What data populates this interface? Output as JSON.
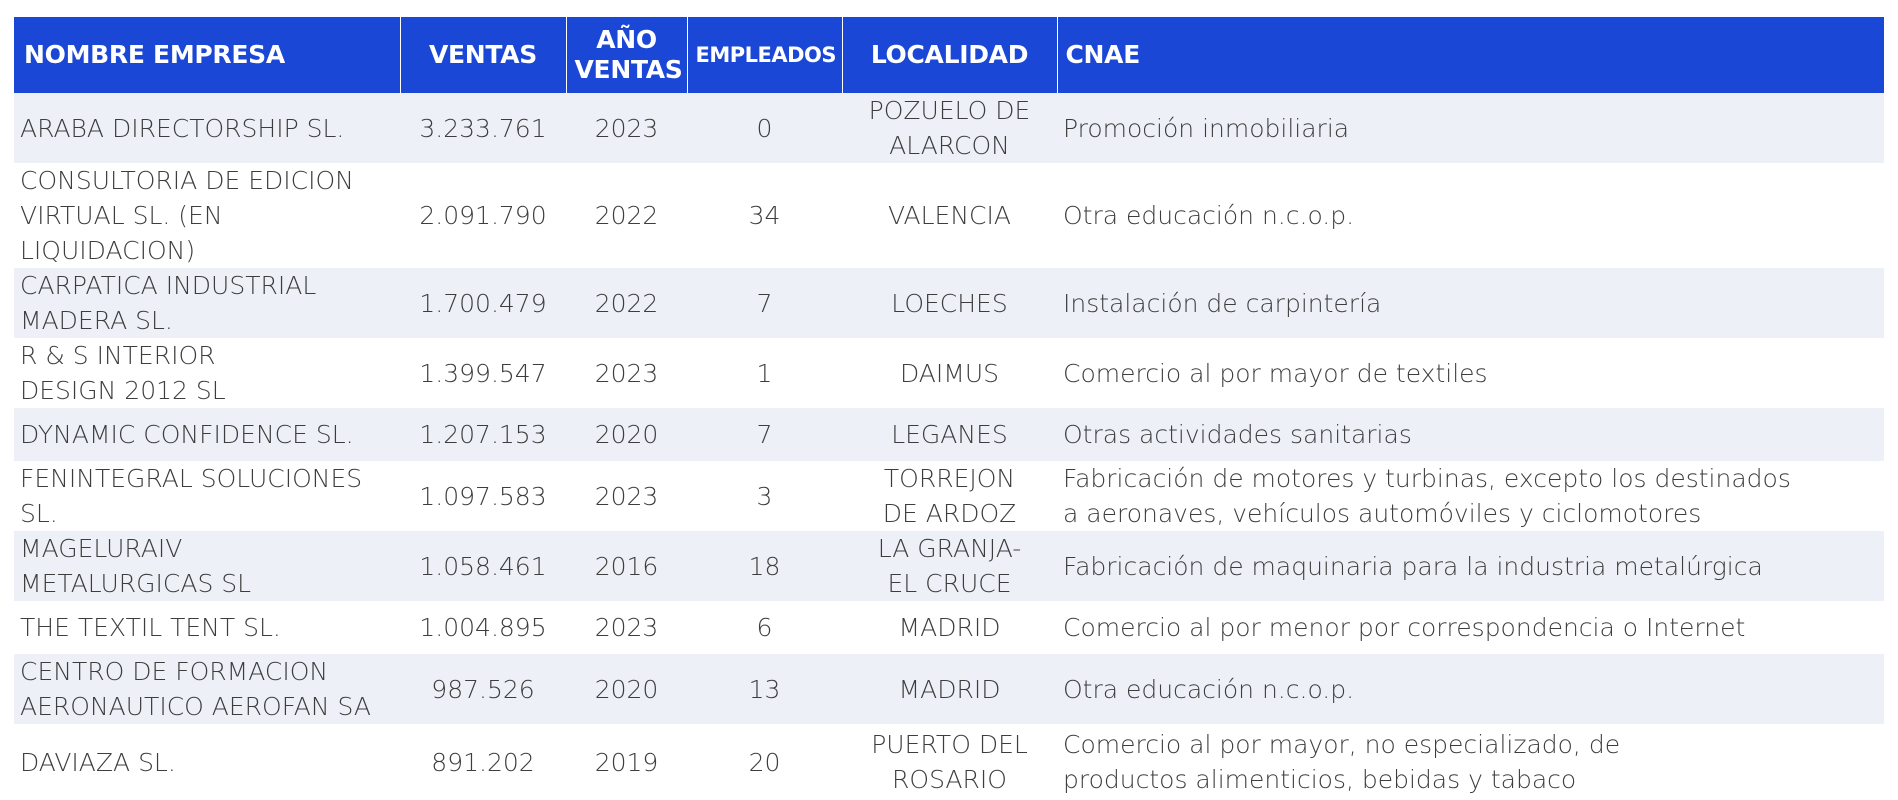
{
  "table": {
    "headers": [
      "NOMBRE EMPRESA",
      "VENTAS",
      "AÑO\nVENTAS",
      "EMPLEADOS",
      "LOCALIDAD",
      "CNAE"
    ],
    "rows": [
      [
        "ARABA DIRECTORSHIP SL.",
        "3.233.761",
        "2023",
        "0",
        "POZUELO DE\nALARCON",
        "Promoción inmobiliaria"
      ],
      [
        "CONSULTORIA DE EDICION\nVIRTUAL SL. (EN LIQUIDACION)",
        "2.091.790",
        "2022",
        "34",
        "VALENCIA",
        "Otra educación n.c.o.p."
      ],
      [
        "CARPATICA INDUSTRIAL\nMADERA SL.",
        "1.700.479",
        "2022",
        "7",
        "LOECHES",
        "Instalación de carpintería"
      ],
      [
        "R & S INTERIOR\nDESIGN 2012 SL",
        "1.399.547",
        "2023",
        "1",
        "DAIMUS",
        "Comercio al por mayor de textiles"
      ],
      [
        "DYNAMIC CONFIDENCE SL.",
        "1.207.153",
        "2020",
        "7",
        "LEGANES",
        "Otras actividades sanitarias"
      ],
      [
        "FENINTEGRAL SOLUCIONES SL.",
        "1.097.583",
        "2023",
        "3",
        "TORREJON\nDE ARDOZ",
        "Fabricación de motores y turbinas, excepto los destinados\na aeronaves, vehículos automóviles y ciclomotores"
      ],
      [
        "MAGELURAIV\nMETALURGICAS SL",
        "1.058.461",
        "2016",
        "18",
        "LA GRANJA-\nEL CRUCE",
        "Fabricación de maquinaria para la industria metalúrgica"
      ],
      [
        "THE TEXTIL TENT SL.",
        "1.004.895",
        "2023",
        "6",
        "MADRID",
        "Comercio al por menor por correspondencia o Internet"
      ],
      [
        "CENTRO DE FORMACION\nAERONAUTICO AEROFAN SA",
        "987.526",
        "2020",
        "13",
        "MADRID",
        "Otra educación n.c.o.p."
      ],
      [
        "DAVIAZA SL.",
        "891.202",
        "2019",
        "20",
        "PUERTO DEL\nROSARIO",
        "Comercio al por mayor, no especializado, de\nproductos alimenticios, bebidas y tabaco"
      ]
    ]
  },
  "colors": {
    "header_bg": "#1b47d6",
    "header_text": "#ffffff",
    "row_shade": "#edf1f7",
    "row_plain": "#ffffff",
    "body_text": "#3d3d3d"
  }
}
